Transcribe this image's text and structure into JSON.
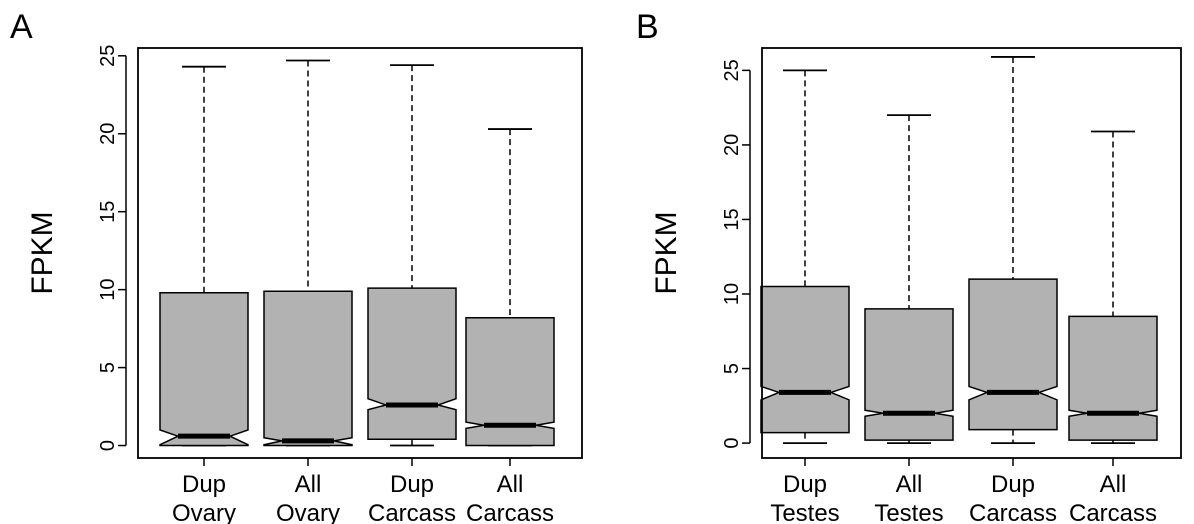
{
  "chart_data": [
    {
      "type": "box",
      "panel_label": "A",
      "ylabel": "FPKM",
      "ylim": [
        -0.8,
        25.5
      ],
      "yticks": [
        0,
        5,
        10,
        15,
        20,
        25
      ],
      "notched": true,
      "box_color": "#b2b2b2",
      "grid": false,
      "categories": [
        {
          "lines": [
            "Dup",
            "Ovary"
          ]
        },
        {
          "lines": [
            "All",
            "Ovary"
          ]
        },
        {
          "lines": [
            "Dup",
            "Carcass"
          ]
        },
        {
          "lines": [
            "All",
            "Carcass"
          ]
        }
      ],
      "boxes": [
        {
          "min": 0.0,
          "q1": 0.0,
          "median": 0.6,
          "q3": 9.8,
          "max": 24.3,
          "notch_low": 0.05,
          "notch_high": 1.0
        },
        {
          "min": 0.0,
          "q1": 0.0,
          "median": 0.3,
          "q3": 9.9,
          "max": 24.7,
          "notch_low": 0.05,
          "notch_high": 0.5
        },
        {
          "min": 0.0,
          "q1": 0.4,
          "median": 2.6,
          "q3": 10.1,
          "max": 24.4,
          "notch_low": 2.3,
          "notch_high": 3.0
        },
        {
          "min": 0.0,
          "q1": 0.0,
          "median": 1.3,
          "q3": 8.2,
          "max": 20.3,
          "notch_low": 1.1,
          "notch_high": 1.5
        }
      ]
    },
    {
      "type": "box",
      "panel_label": "B",
      "ylabel": "FPKM",
      "ylim": [
        -1.0,
        26.5
      ],
      "yticks": [
        0,
        5,
        10,
        15,
        20,
        25
      ],
      "notched": true,
      "box_color": "#b2b2b2",
      "grid": false,
      "categories": [
        {
          "lines": [
            "Dup",
            "Testes"
          ]
        },
        {
          "lines": [
            "All",
            "Testes"
          ]
        },
        {
          "lines": [
            "Dup",
            "Carcass"
          ]
        },
        {
          "lines": [
            "All",
            "Carcass"
          ]
        }
      ],
      "boxes": [
        {
          "min": 0.0,
          "q1": 0.7,
          "median": 3.4,
          "q3": 10.5,
          "max": 25.0,
          "notch_low": 2.9,
          "notch_high": 3.8
        },
        {
          "min": 0.0,
          "q1": 0.2,
          "median": 2.0,
          "q3": 9.0,
          "max": 22.0,
          "notch_low": 1.8,
          "notch_high": 2.2
        },
        {
          "min": 0.0,
          "q1": 0.9,
          "median": 3.4,
          "q3": 11.0,
          "max": 25.9,
          "notch_low": 2.9,
          "notch_high": 3.8
        },
        {
          "min": 0.0,
          "q1": 0.2,
          "median": 2.0,
          "q3": 8.5,
          "max": 20.9,
          "notch_low": 1.8,
          "notch_high": 2.2
        }
      ]
    }
  ]
}
